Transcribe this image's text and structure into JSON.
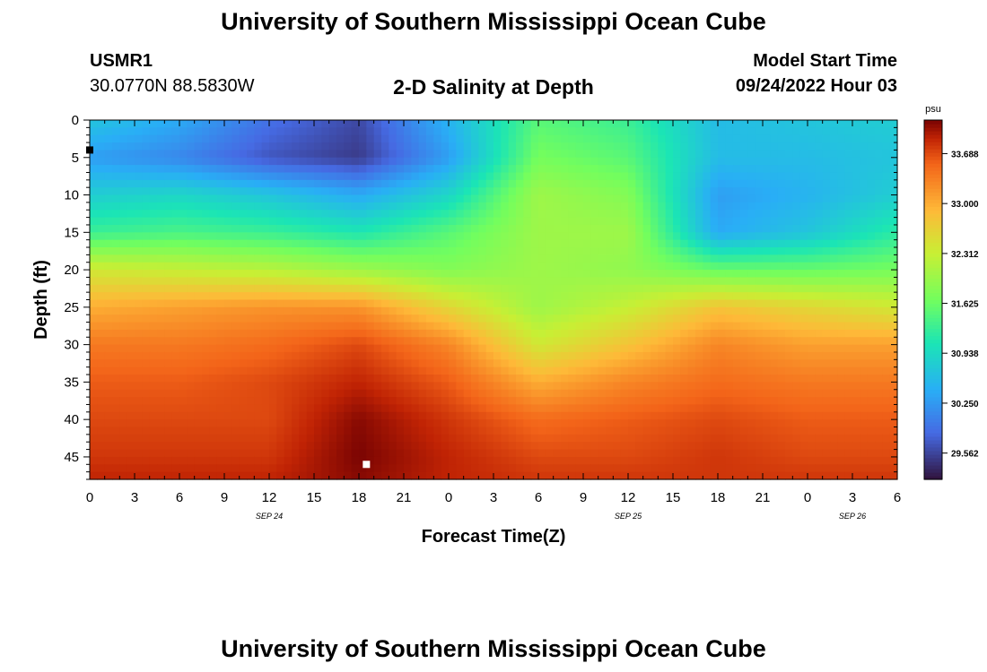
{
  "header": {
    "title": "University of Southern Mississippi Ocean Cube",
    "station_id": "USMR1",
    "station_coords": "30.0770N  88.5830W",
    "plot_title": "2-D Salinity at Depth",
    "model_start_label": "Model Start Time",
    "model_start_value": "09/24/2022 Hour 03"
  },
  "footer": {
    "title": "University of Southern Mississippi Ocean Cube"
  },
  "chart_data": {
    "type": "heatmap",
    "title": "2-D Salinity at Depth",
    "xlabel": "Forecast Time(Z)",
    "ylabel": "Depth (ft)",
    "x_tick_labels": [
      "0",
      "3",
      "6",
      "9",
      "12",
      "15",
      "18",
      "21",
      "0",
      "3",
      "6",
      "9",
      "12",
      "15",
      "18",
      "21",
      "0",
      "3",
      "6"
    ],
    "x_range_hours": [
      0,
      54
    ],
    "date_labels": [
      {
        "text": "SEP 24",
        "hour": 12
      },
      {
        "text": "SEP 25",
        "hour": 36
      },
      {
        "text": "SEP 26",
        "hour": 51
      }
    ],
    "y_ticks": [
      0,
      5,
      10,
      15,
      20,
      25,
      30,
      35,
      40,
      45
    ],
    "y_range_ft": [
      0,
      48
    ],
    "y_inverted": true,
    "colorbar": {
      "unit": "psu",
      "range": [
        29.2,
        34.15
      ],
      "tick_values": [
        33.688,
        33.0,
        32.312,
        31.625,
        30.938,
        30.25,
        29.562
      ],
      "tick_labels": [
        "33.688",
        "33.000",
        "32.312",
        "31.625",
        "30.938",
        "30.250",
        "29.562"
      ]
    },
    "field_grid": {
      "x_hours": [
        0,
        6,
        12,
        18,
        24,
        30,
        36,
        42,
        48,
        54
      ],
      "depth_ft": [
        0,
        5,
        10,
        15,
        20,
        25,
        30,
        35,
        40,
        45,
        48
      ],
      "salinity_psu": [
        [
          30.7,
          30.4,
          29.9,
          29.6,
          30.5,
          31.5,
          31.3,
          30.6,
          30.7,
          30.8
        ],
        [
          30.3,
          30.1,
          29.7,
          29.5,
          30.3,
          31.7,
          31.5,
          30.6,
          30.6,
          30.7
        ],
        [
          30.8,
          30.9,
          30.7,
          30.4,
          30.9,
          32.0,
          31.8,
          30.3,
          30.5,
          30.8
        ],
        [
          31.3,
          31.4,
          31.3,
          31.1,
          31.5,
          32.0,
          32.0,
          30.4,
          30.7,
          31.2
        ],
        [
          32.4,
          32.3,
          32.2,
          32.0,
          31.8,
          32.0,
          31.9,
          31.6,
          31.6,
          31.7
        ],
        [
          33.0,
          33.1,
          33.2,
          33.2,
          32.6,
          32.0,
          32.3,
          32.8,
          32.6,
          32.4
        ],
        [
          33.4,
          33.4,
          33.5,
          33.7,
          33.3,
          32.4,
          32.8,
          33.3,
          33.1,
          33.1
        ],
        [
          33.6,
          33.6,
          33.7,
          33.9,
          33.6,
          33.0,
          33.3,
          33.5,
          33.4,
          33.4
        ],
        [
          33.7,
          33.7,
          33.7,
          34.1,
          33.8,
          33.5,
          33.6,
          33.7,
          33.6,
          33.6
        ],
        [
          33.8,
          33.8,
          33.8,
          34.15,
          33.9,
          33.7,
          33.7,
          33.8,
          33.7,
          33.7
        ],
        [
          33.9,
          33.9,
          33.9,
          34.1,
          33.9,
          33.8,
          33.8,
          33.8,
          33.8,
          33.8
        ]
      ]
    },
    "markers": [
      {
        "hour": 18.5,
        "depth_ft": 46,
        "color": "#ffffff"
      },
      {
        "hour": 0,
        "depth_ft": 4,
        "color": "#000000"
      }
    ],
    "grid": false,
    "legend": "right"
  }
}
